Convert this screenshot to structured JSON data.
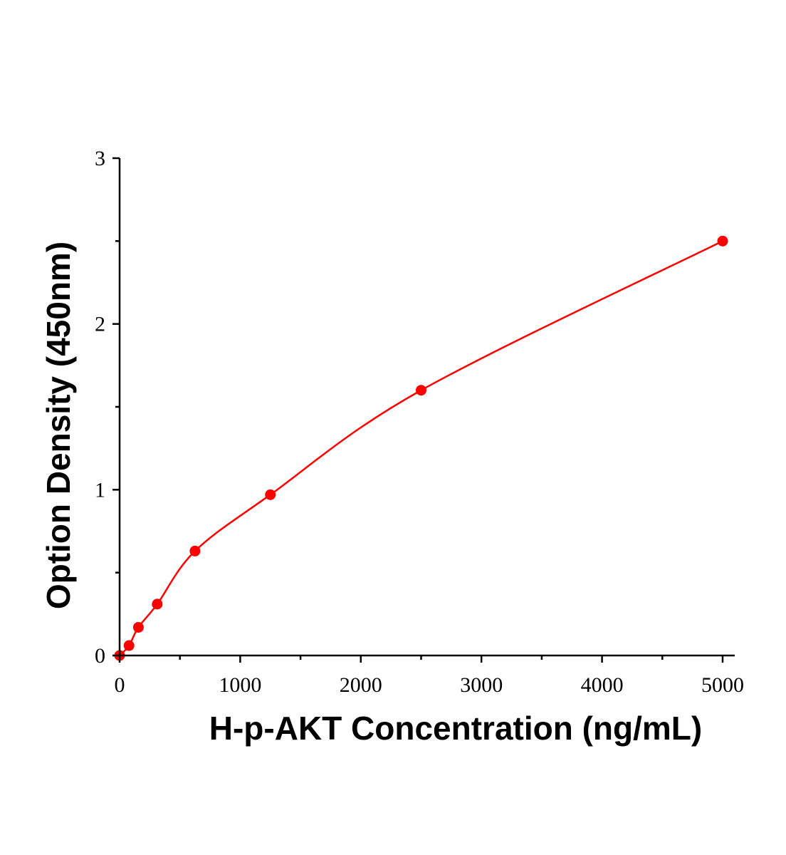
{
  "chart_data": {
    "type": "scatter",
    "xlabel": "H-p-AKT Concentration (ng/mL)",
    "ylabel": "Option Density (450nm)",
    "xlim": [
      0,
      5100
    ],
    "ylim": [
      0,
      3
    ],
    "x_ticks": [
      0,
      1000,
      2000,
      3000,
      4000,
      5000
    ],
    "x_minor_ticks": [
      500,
      1500,
      2500,
      3500,
      4500
    ],
    "y_ticks": [
      0,
      1,
      2,
      3
    ],
    "y_minor_ticks": [
      0.5,
      1.5,
      2.5
    ],
    "grid": false,
    "series": [
      {
        "marker": "circle",
        "fit_line": true,
        "x": [
          0,
          78,
          156,
          312,
          625,
          1250,
          2500,
          5000
        ],
        "y": [
          0.0,
          0.06,
          0.17,
          0.31,
          0.63,
          0.97,
          1.6,
          2.5
        ]
      }
    ],
    "colors": {
      "series": "#ff0000",
      "axis": "#000000"
    }
  }
}
